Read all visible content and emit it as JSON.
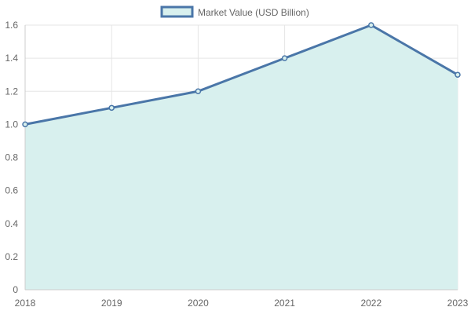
{
  "chart_data": {
    "type": "area",
    "categories": [
      "2018",
      "2019",
      "2020",
      "2021",
      "2022",
      "2023"
    ],
    "series": [
      {
        "name": "Market Value (USD Billion)",
        "values": [
          1.0,
          1.1,
          1.2,
          1.4,
          1.6,
          1.3
        ]
      }
    ],
    "ylim": [
      0,
      1.6
    ],
    "yticks": [
      "0",
      "0.2",
      "0.4",
      "0.6",
      "0.8",
      "1.0",
      "1.2",
      "1.4",
      "1.6"
    ],
    "grid": true,
    "legend_position": "top-center",
    "colors": {
      "line": "#4a76a8",
      "fill": "#d8f0ee",
      "grid": "#e5e5e5",
      "axis": "#cccccc",
      "text": "#666666"
    }
  }
}
